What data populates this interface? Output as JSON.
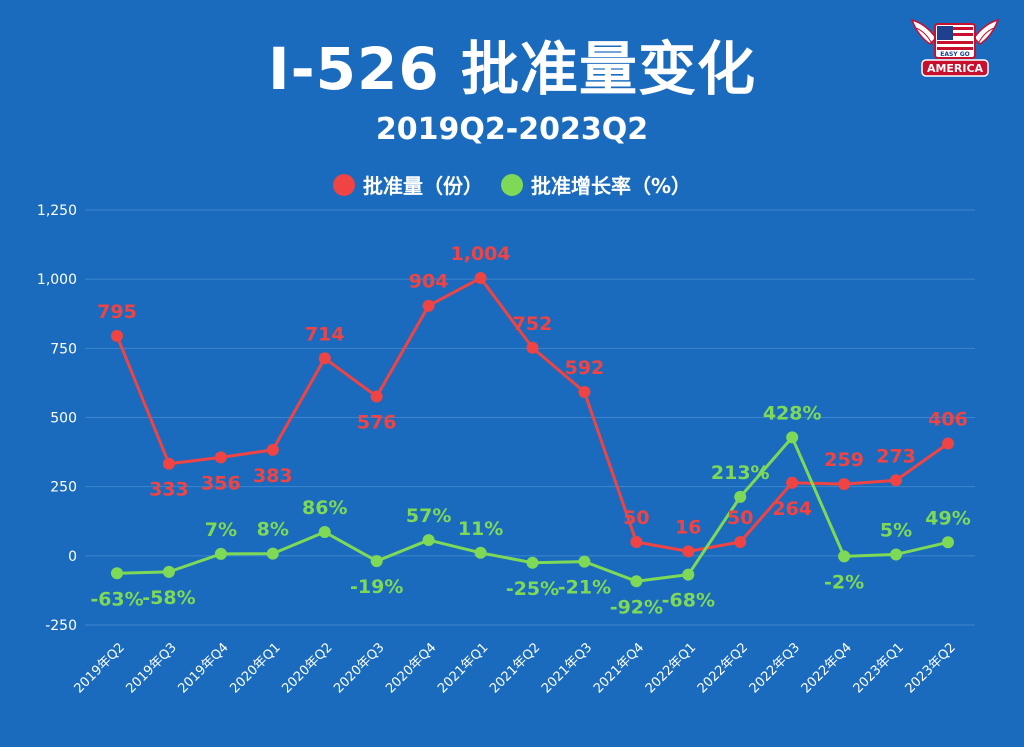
{
  "header": {
    "title": "I-526 批准量变化",
    "subtitle": "2019Q2-2023Q2"
  },
  "logo": {
    "top_text": "EASY GO",
    "bottom_text": "AMERICA"
  },
  "colors": {
    "background": "#1a6bbd",
    "series_1": "#f04343",
    "series_2": "#7ed957",
    "grid": "#3d86cf",
    "text": "#ffffff"
  },
  "chart_data": {
    "type": "line",
    "title": "I-526 批准量变化",
    "subtitle": "2019Q2-2023Q2",
    "categories": [
      "2019年Q2",
      "2019年Q3",
      "2019年Q4",
      "2020年Q1",
      "2020年Q2",
      "2020年Q3",
      "2020年Q4",
      "2021年Q1",
      "2021年Q2",
      "2021年Q3",
      "2021年Q4",
      "2022年Q1",
      "2022年Q2",
      "2022年Q3",
      "2022年Q4",
      "2023年Q1",
      "2023年Q2"
    ],
    "ylim": [
      -250,
      1250
    ],
    "yticks": [
      -250,
      0,
      250,
      500,
      750,
      1000,
      1250
    ],
    "ytick_labels": [
      "-250",
      "0",
      "250",
      "500",
      "750",
      "1,000",
      "1,250"
    ],
    "grid": true,
    "legend_position": "top-center",
    "series": [
      {
        "name": "批准量（份）",
        "color": "#f04343",
        "values": [
          795,
          333,
          356,
          383,
          714,
          576,
          904,
          1004,
          752,
          592,
          50,
          16,
          50,
          264,
          259,
          273,
          406
        ],
        "labels": [
          "795",
          "333",
          "356",
          "383",
          "714",
          "576",
          "904",
          "1,004",
          "752",
          "592",
          "50",
          "16",
          "50",
          "264",
          "259",
          "273",
          "406"
        ]
      },
      {
        "name": "批准增长率（%）",
        "color": "#7ed957",
        "values": [
          -63,
          -58,
          7,
          8,
          86,
          -19,
          57,
          11,
          -25,
          -21,
          -92,
          -68,
          213,
          428,
          -2,
          5,
          49
        ],
        "labels": [
          "-63%",
          "-58%",
          "7%",
          "8%",
          "86%",
          "-19%",
          "57%",
          "11%",
          "-25%",
          "-21%",
          "-92%",
          "-68%",
          "213%",
          "428%",
          "-2%",
          "5%",
          "49%"
        ]
      }
    ]
  }
}
